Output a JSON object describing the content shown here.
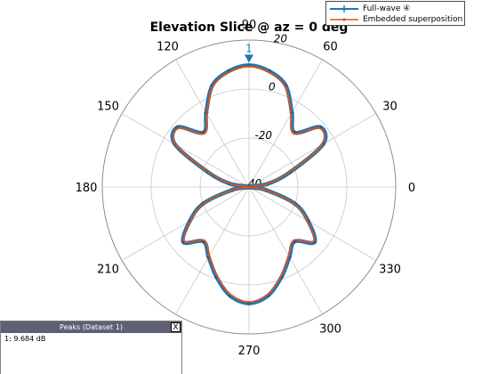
{
  "chart_data": {
    "type": "polar-line",
    "title": "Elevation Slice @ az = 0 deg",
    "angle_ticks": [
      "0",
      "30",
      "60",
      "90",
      "120",
      "150",
      "180",
      "210",
      "240",
      "270",
      "300",
      "330"
    ],
    "radial_ticks": [
      "40",
      "-20",
      "0",
      "20"
    ],
    "radial_range_db": [
      -40,
      20
    ],
    "grid": true,
    "legend_placement": "top-right",
    "marker_label": "1",
    "marker_angle_deg": 90,
    "angles_deg": [
      0,
      10,
      20,
      30,
      40,
      50,
      60,
      70,
      80,
      90,
      100,
      110,
      120,
      130,
      140,
      150,
      160,
      170,
      180,
      190,
      200,
      210,
      220,
      230,
      240,
      250,
      260,
      270,
      280,
      290,
      300,
      310,
      320,
      330,
      340,
      350
    ],
    "series": [
      {
        "name": "Full-wave ④",
        "color": "#1f77b4",
        "values_db": [
          -40,
          -32,
          -22,
          -5,
          -2,
          -11,
          -5,
          4,
          8,
          9.7,
          8,
          4,
          -5,
          -11,
          -2,
          -5,
          -22,
          -32,
          -40,
          -33,
          -20,
          -12,
          -5,
          -11,
          -7,
          -1,
          5,
          7.5,
          5,
          -1,
          -7,
          -11,
          -5,
          -12,
          -20,
          -33
        ]
      },
      {
        "name": "Embedded superposition",
        "color": "#d95319",
        "values_db": [
          -40,
          -32.5,
          -22.5,
          -5.5,
          -2.5,
          -11.5,
          -5.5,
          3.5,
          7.5,
          9.3,
          7.5,
          3.5,
          -5.5,
          -11.5,
          -2.5,
          -5.5,
          -22.5,
          -32.5,
          -40,
          -33.5,
          -20.5,
          -12.5,
          -5.5,
          -11.5,
          -7.5,
          -1.5,
          4.5,
          7,
          4.5,
          -1.5,
          -7.5,
          -11.5,
          -5.5,
          -12.5,
          -20.5,
          -33.5
        ]
      }
    ]
  },
  "legend": {
    "items": [
      {
        "label": "Full-wave ④"
      },
      {
        "label": "Embedded superposition"
      }
    ]
  },
  "peaks_panel": {
    "title": "Peaks (Dataset 1)",
    "close_label": "X",
    "entry": "1: 9.684 dB"
  }
}
